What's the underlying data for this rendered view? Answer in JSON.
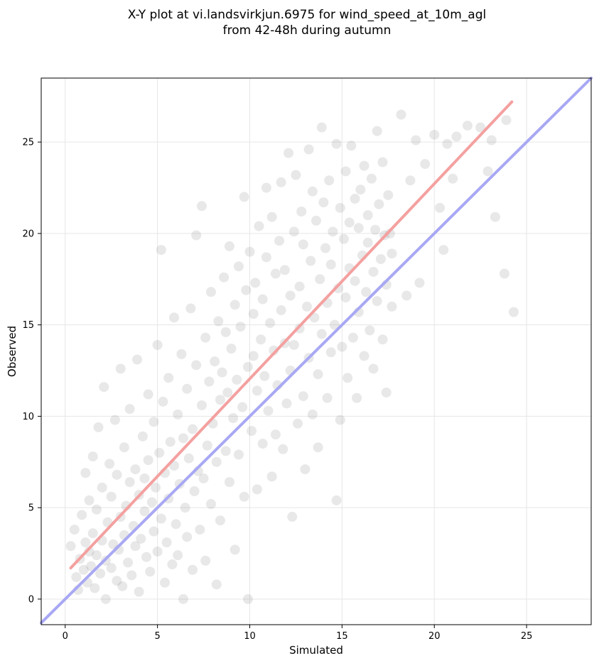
{
  "chart_data": {
    "type": "scatter",
    "title_lines": [
      "X-Y plot at vi.landsvirkjun.6975 for wind_speed_at_10m_agl",
      "from 42-48h during autumn"
    ],
    "xlabel": "Simulated",
    "ylabel": "Observed",
    "xlim": [
      -1.3,
      28.5
    ],
    "ylim": [
      -1.4,
      28.5
    ],
    "xticks": [
      0,
      5,
      10,
      15,
      20,
      25
    ],
    "yticks": [
      0,
      5,
      10,
      15,
      20,
      25
    ],
    "xtick_labels": [
      "0",
      "5",
      "10",
      "15",
      "20",
      "25"
    ],
    "ytick_labels": [
      "0",
      "5",
      "10",
      "15",
      "20",
      "25"
    ],
    "grid": true,
    "points": [
      [
        0.3,
        2.9
      ],
      [
        0.5,
        3.8
      ],
      [
        0.6,
        1.2
      ],
      [
        0.7,
        0.5
      ],
      [
        0.8,
        2.2
      ],
      [
        0.9,
        4.6
      ],
      [
        1.0,
        1.6
      ],
      [
        1.1,
        3.1
      ],
      [
        1.1,
        6.9
      ],
      [
        1.2,
        0.9
      ],
      [
        1.3,
        2.6
      ],
      [
        1.3,
        5.4
      ],
      [
        1.4,
        1.8
      ],
      [
        1.5,
        3.6
      ],
      [
        1.5,
        7.8
      ],
      [
        1.6,
        0.6
      ],
      [
        1.7,
        2.4
      ],
      [
        1.7,
        4.9
      ],
      [
        1.8,
        9.4
      ],
      [
        1.9,
        1.4
      ],
      [
        2.0,
        3.2
      ],
      [
        2.0,
        6.1
      ],
      [
        2.1,
        11.6
      ],
      [
        2.2,
        0.0
      ],
      [
        2.2,
        2.1
      ],
      [
        2.3,
        4.2
      ],
      [
        2.4,
        7.4
      ],
      [
        2.5,
        1.7
      ],
      [
        2.5,
        5.6
      ],
      [
        2.6,
        3.0
      ],
      [
        2.7,
        9.8
      ],
      [
        2.8,
        1.0
      ],
      [
        2.8,
        6.8
      ],
      [
        2.9,
        2.7
      ],
      [
        3.0,
        4.5
      ],
      [
        3.0,
        12.6
      ],
      [
        3.1,
        0.7
      ],
      [
        3.2,
        3.5
      ],
      [
        3.2,
        8.3
      ],
      [
        3.3,
        5.1
      ],
      [
        3.4,
        2.0
      ],
      [
        3.5,
        6.4
      ],
      [
        3.5,
        10.4
      ],
      [
        3.6,
        1.3
      ],
      [
        3.7,
        4.0
      ],
      [
        3.8,
        7.1
      ],
      [
        3.8,
        2.9
      ],
      [
        3.9,
        13.1
      ],
      [
        4.0,
        5.7
      ],
      [
        4.0,
        0.4
      ],
      [
        4.1,
        3.3
      ],
      [
        4.2,
        8.9
      ],
      [
        4.3,
        4.8
      ],
      [
        4.3,
        6.6
      ],
      [
        4.4,
        2.3
      ],
      [
        4.5,
        11.2
      ],
      [
        4.5,
        7.6
      ],
      [
        4.6,
        1.5
      ],
      [
        4.7,
        5.3
      ],
      [
        4.8,
        9.7
      ],
      [
        4.8,
        3.7
      ],
      [
        4.9,
        6.1
      ],
      [
        5.0,
        13.9
      ],
      [
        5.0,
        2.6
      ],
      [
        5.1,
        8.0
      ],
      [
        5.2,
        4.4
      ],
      [
        5.2,
        19.1
      ],
      [
        5.3,
        10.8
      ],
      [
        5.4,
        0.9
      ],
      [
        5.4,
        6.9
      ],
      [
        5.5,
        3.1
      ],
      [
        5.6,
        12.1
      ],
      [
        5.6,
        5.5
      ],
      [
        5.7,
        8.6
      ],
      [
        5.8,
        1.9
      ],
      [
        5.9,
        15.4
      ],
      [
        5.9,
        7.3
      ],
      [
        6.0,
        4.1
      ],
      [
        6.1,
        10.1
      ],
      [
        6.1,
        2.4
      ],
      [
        6.2,
        6.3
      ],
      [
        6.3,
        13.4
      ],
      [
        6.4,
        8.8
      ],
      [
        6.4,
        0.0
      ],
      [
        6.5,
        5.0
      ],
      [
        6.6,
        11.5
      ],
      [
        6.6,
        3.4
      ],
      [
        6.7,
        7.7
      ],
      [
        6.8,
        15.9
      ],
      [
        6.9,
        9.3
      ],
      [
        6.9,
        1.6
      ],
      [
        7.0,
        5.9
      ],
      [
        7.1,
        12.8
      ],
      [
        7.1,
        19.9
      ],
      [
        7.2,
        7.0
      ],
      [
        7.3,
        3.8
      ],
      [
        7.4,
        10.6
      ],
      [
        7.4,
        21.5
      ],
      [
        7.5,
        6.6
      ],
      [
        7.6,
        14.3
      ],
      [
        7.6,
        2.1
      ],
      [
        7.7,
        8.4
      ],
      [
        7.8,
        11.9
      ],
      [
        7.9,
        5.2
      ],
      [
        7.9,
        16.8
      ],
      [
        8.0,
        9.6
      ],
      [
        8.1,
        13.0
      ],
      [
        8.2,
        7.5
      ],
      [
        8.2,
        0.8
      ],
      [
        8.3,
        15.2
      ],
      [
        8.4,
        10.9
      ],
      [
        8.4,
        4.3
      ],
      [
        8.5,
        12.4
      ],
      [
        8.6,
        17.6
      ],
      [
        8.7,
        8.1
      ],
      [
        8.7,
        14.6
      ],
      [
        8.8,
        11.3
      ],
      [
        8.9,
        6.4
      ],
      [
        8.9,
        19.3
      ],
      [
        9.0,
        13.7
      ],
      [
        9.1,
        9.9
      ],
      [
        9.2,
        16.1
      ],
      [
        9.2,
        2.7
      ],
      [
        9.3,
        12.0
      ],
      [
        9.4,
        18.2
      ],
      [
        9.4,
        7.9
      ],
      [
        9.5,
        14.9
      ],
      [
        9.6,
        10.5
      ],
      [
        9.7,
        22.0
      ],
      [
        9.7,
        5.6
      ],
      [
        9.8,
        16.9
      ],
      [
        9.9,
        12.7
      ],
      [
        9.9,
        0.0
      ],
      [
        10.0,
        19.0
      ],
      [
        10.1,
        9.2
      ],
      [
        10.2,
        15.6
      ],
      [
        10.2,
        13.3
      ],
      [
        10.3,
        17.3
      ],
      [
        10.4,
        6.0
      ],
      [
        10.4,
        11.4
      ],
      [
        10.5,
        20.4
      ],
      [
        10.6,
        14.2
      ],
      [
        10.7,
        8.5
      ],
      [
        10.7,
        16.4
      ],
      [
        10.8,
        12.2
      ],
      [
        10.9,
        18.7
      ],
      [
        10.9,
        22.5
      ],
      [
        11.0,
        10.3
      ],
      [
        11.1,
        15.1
      ],
      [
        11.2,
        6.7
      ],
      [
        11.2,
        20.9
      ],
      [
        11.3,
        13.6
      ],
      [
        11.4,
        17.8
      ],
      [
        11.4,
        9.0
      ],
      [
        11.5,
        11.7
      ],
      [
        11.6,
        19.6
      ],
      [
        11.7,
        15.8
      ],
      [
        11.7,
        22.8
      ],
      [
        11.8,
        8.2
      ],
      [
        11.9,
        14.0
      ],
      [
        11.9,
        18.0
      ],
      [
        12.0,
        10.7
      ],
      [
        12.1,
        24.4
      ],
      [
        12.2,
        16.6
      ],
      [
        12.2,
        12.5
      ],
      [
        12.3,
        4.5
      ],
      [
        12.4,
        20.1
      ],
      [
        12.4,
        13.9
      ],
      [
        12.5,
        23.2
      ],
      [
        12.6,
        9.6
      ],
      [
        12.7,
        17.1
      ],
      [
        12.7,
        14.8
      ],
      [
        12.8,
        21.2
      ],
      [
        12.9,
        11.1
      ],
      [
        12.9,
        19.4
      ],
      [
        13.0,
        7.1
      ],
      [
        13.1,
        16.0
      ],
      [
        13.2,
        24.6
      ],
      [
        13.2,
        13.2
      ],
      [
        13.3,
        18.5
      ],
      [
        13.4,
        10.1
      ],
      [
        13.4,
        22.3
      ],
      [
        13.5,
        15.4
      ],
      [
        13.6,
        20.7
      ],
      [
        13.7,
        12.3
      ],
      [
        13.7,
        8.3
      ],
      [
        13.8,
        17.5
      ],
      [
        13.9,
        25.8
      ],
      [
        13.9,
        14.5
      ],
      [
        14.0,
        21.7
      ],
      [
        14.1,
        19.2
      ],
      [
        14.2,
        11.0
      ],
      [
        14.2,
        16.2
      ],
      [
        14.3,
        22.9
      ],
      [
        14.4,
        13.5
      ],
      [
        14.4,
        18.3
      ],
      [
        14.5,
        20.1
      ],
      [
        14.6,
        15.0
      ],
      [
        14.7,
        5.4
      ],
      [
        14.7,
        24.9
      ],
      [
        14.8,
        17.0
      ],
      [
        14.9,
        9.8
      ],
      [
        14.9,
        21.4
      ],
      [
        15.0,
        13.8
      ],
      [
        15.1,
        19.7
      ],
      [
        15.2,
        16.5
      ],
      [
        15.2,
        23.4
      ],
      [
        15.3,
        12.1
      ],
      [
        15.4,
        20.6
      ],
      [
        15.4,
        18.1
      ],
      [
        15.5,
        24.8
      ],
      [
        15.6,
        14.3
      ],
      [
        15.7,
        21.9
      ],
      [
        15.7,
        17.4
      ],
      [
        15.8,
        11.0
      ],
      [
        15.9,
        20.3
      ],
      [
        15.9,
        15.7
      ],
      [
        16.0,
        22.4
      ],
      [
        16.1,
        18.8
      ],
      [
        16.2,
        13.3
      ],
      [
        16.2,
        23.7
      ],
      [
        16.3,
        16.8
      ],
      [
        16.4,
        21.0
      ],
      [
        16.4,
        19.5
      ],
      [
        16.5,
        14.7
      ],
      [
        16.6,
        23.0
      ],
      [
        16.7,
        17.9
      ],
      [
        16.7,
        12.6
      ],
      [
        16.8,
        20.2
      ],
      [
        16.9,
        25.6
      ],
      [
        16.9,
        16.3
      ],
      [
        17.0,
        21.6
      ],
      [
        17.1,
        18.6
      ],
      [
        17.2,
        23.9
      ],
      [
        17.2,
        14.2
      ],
      [
        17.3,
        19.9
      ],
      [
        17.4,
        11.3
      ],
      [
        17.4,
        17.2
      ],
      [
        17.5,
        22.1
      ],
      [
        17.6,
        20.0
      ],
      [
        17.7,
        16.0
      ],
      [
        17.7,
        18.9
      ],
      [
        18.2,
        26.5
      ],
      [
        18.5,
        16.6
      ],
      [
        18.7,
        22.9
      ],
      [
        19.0,
        25.1
      ],
      [
        19.2,
        17.3
      ],
      [
        19.5,
        23.8
      ],
      [
        20.0,
        25.4
      ],
      [
        20.3,
        21.4
      ],
      [
        20.5,
        19.1
      ],
      [
        20.7,
        24.9
      ],
      [
        21.0,
        23.0
      ],
      [
        21.2,
        25.3
      ],
      [
        21.8,
        25.9
      ],
      [
        22.5,
        25.8
      ],
      [
        22.9,
        23.4
      ],
      [
        23.1,
        25.1
      ],
      [
        23.3,
        20.9
      ],
      [
        23.8,
        17.8
      ],
      [
        23.9,
        26.2
      ],
      [
        24.3,
        15.7
      ]
    ],
    "fit_line": {
      "color": "#f4a0a0",
      "x": [
        0.3,
        24.2
      ],
      "y": [
        1.7,
        27.2
      ]
    },
    "identity_line": {
      "color": "#a8a8f4",
      "x": [
        -1.3,
        28.5
      ],
      "y": [
        -1.3,
        28.5
      ]
    },
    "point_color": "#808080"
  }
}
